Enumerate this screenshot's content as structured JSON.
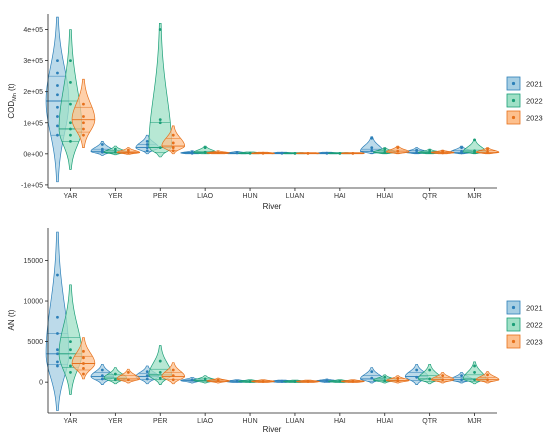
{
  "colors": {
    "2021": "#2c7fb8",
    "2022": "#1a9e77",
    "2023": "#e6701b",
    "fill_2021": "#a6cee3",
    "fill_2022": "#9fe0c6",
    "fill_2023": "#fdc08e"
  },
  "chart_data": [
    {
      "type": "violin",
      "xlabel": "River",
      "ylabel_main": "COD",
      "ylabel_sub": "Mn",
      "ylabel_unit": " (t)",
      "ylim": [
        -110000,
        450000
      ],
      "yticks": [
        -100000,
        0,
        100000,
        200000,
        300000,
        400000
      ],
      "ytick_labels": [
        "-1e+05",
        "0e+00",
        "1e+05",
        "2e+05",
        "3e+05",
        "4e+05"
      ],
      "categories": [
        "YAR",
        "YER",
        "PER",
        "LIAO",
        "HUN",
        "LUAN",
        "HAI",
        "HUAI",
        "QTR",
        "MJR"
      ],
      "legend": [
        "2021",
        "2022",
        "2023"
      ],
      "legend_position": "right",
      "series": [
        {
          "name": "2021",
          "violins": [
            {
              "min": -90000,
              "max": 440000,
              "q1": 60000,
              "median": 170000,
              "q3": 250000,
              "mode": 170000,
              "points": [
                300000,
                260000,
                220000,
                190000,
                150000,
                120000,
                90000,
                60000
              ]
            },
            {
              "min": -5000,
              "max": 40000,
              "q1": 3000,
              "median": 8000,
              "q3": 15000,
              "mode": 8000,
              "points": [
                30000,
                15000,
                10000,
                5000
              ]
            },
            {
              "min": 0,
              "max": 60000,
              "q1": 8000,
              "median": 20000,
              "q3": 30000,
              "mode": 20000,
              "points": [
                40000,
                30000,
                20000,
                10000
              ]
            },
            {
              "min": 0,
              "max": 10000,
              "q1": 1000,
              "median": 3000,
              "q3": 5000,
              "mode": 3000,
              "points": [
                5000,
                2000
              ]
            },
            {
              "min": 0,
              "max": 8000,
              "q1": 1000,
              "median": 2000,
              "q3": 4000,
              "mode": 2000,
              "points": [
                3000
              ]
            },
            {
              "min": 0,
              "max": 5000,
              "q1": 500,
              "median": 1500,
              "q3": 3000,
              "mode": 1500,
              "points": [
                2000
              ]
            },
            {
              "min": 0,
              "max": 5000,
              "q1": 500,
              "median": 1500,
              "q3": 3000,
              "mode": 1500,
              "points": [
                2000
              ]
            },
            {
              "min": 0,
              "max": 55000,
              "q1": 2000,
              "median": 8000,
              "q3": 15000,
              "mode": 8000,
              "points": [
                50000,
                20000,
                10000
              ]
            },
            {
              "min": 0,
              "max": 20000,
              "q1": 2000,
              "median": 5000,
              "q3": 10000,
              "mode": 5000,
              "points": [
                12000,
                5000
              ]
            },
            {
              "min": 0,
              "max": 25000,
              "q1": 2000,
              "median": 5000,
              "q3": 10000,
              "mode": 5000,
              "points": [
                20000,
                8000,
                3000
              ]
            }
          ]
        },
        {
          "name": "2022",
          "violins": [
            {
              "min": -50000,
              "max": 400000,
              "q1": 40000,
              "median": 80000,
              "q3": 170000,
              "mode": 80000,
              "points": [
                300000,
                230000,
                160000,
                100000,
                80000,
                60000,
                40000
              ]
            },
            {
              "min": -3000,
              "max": 25000,
              "q1": 2000,
              "median": 5000,
              "q3": 10000,
              "mode": 5000,
              "points": [
                15000,
                5000
              ]
            },
            {
              "min": -10000,
              "max": 420000,
              "q1": 5000,
              "median": 20000,
              "q3": 100000,
              "mode": 20000,
              "points": [
                400000,
                110000,
                100000,
                20000
              ]
            },
            {
              "min": 0,
              "max": 25000,
              "q1": 1000,
              "median": 4000,
              "q3": 8000,
              "mode": 4000,
              "points": [
                20000,
                5000
              ]
            },
            {
              "min": 0,
              "max": 6000,
              "q1": 1000,
              "median": 2000,
              "q3": 3000,
              "mode": 2000,
              "points": [
                2000
              ]
            },
            {
              "min": 0,
              "max": 4000,
              "q1": 500,
              "median": 1500,
              "q3": 2500,
              "mode": 1500,
              "points": [
                1500
              ]
            },
            {
              "min": 0,
              "max": 4000,
              "q1": 500,
              "median": 1500,
              "q3": 2500,
              "mode": 1500,
              "points": [
                1500
              ]
            },
            {
              "min": 0,
              "max": 20000,
              "q1": 2000,
              "median": 5000,
              "q3": 10000,
              "mode": 5000,
              "points": [
                15000,
                5000
              ]
            },
            {
              "min": 0,
              "max": 15000,
              "q1": 2000,
              "median": 4000,
              "q3": 8000,
              "mode": 4000,
              "points": [
                10000,
                4000
              ]
            },
            {
              "min": 0,
              "max": 45000,
              "q1": 2000,
              "median": 6000,
              "q3": 12000,
              "mode": 6000,
              "points": [
                45000,
                10000,
                4000
              ]
            }
          ]
        },
        {
          "name": "2023",
          "violins": [
            {
              "min": 20000,
              "max": 240000,
              "q1": 70000,
              "median": 110000,
              "q3": 150000,
              "mode": 110000,
              "points": [
                160000,
                120000,
                100000,
                80000,
                60000
              ]
            },
            {
              "min": -2000,
              "max": 20000,
              "q1": 2000,
              "median": 4000,
              "q3": 8000,
              "mode": 4000,
              "points": [
                12000,
                4000
              ]
            },
            {
              "min": 0,
              "max": 90000,
              "q1": 10000,
              "median": 25000,
              "q3": 50000,
              "mode": 25000,
              "points": [
                60000,
                35000,
                20000,
                10000
              ]
            },
            {
              "min": 0,
              "max": 10000,
              "q1": 1000,
              "median": 3000,
              "q3": 5000,
              "mode": 3000,
              "points": [
                4000
              ]
            },
            {
              "min": 0,
              "max": 5000,
              "q1": 500,
              "median": 1500,
              "q3": 3000,
              "mode": 1500,
              "points": [
                2000
              ]
            },
            {
              "min": 0,
              "max": 4000,
              "q1": 500,
              "median": 1500,
              "q3": 2500,
              "mode": 1500,
              "points": [
                1500
              ]
            },
            {
              "min": 0,
              "max": 4000,
              "q1": 500,
              "median": 1500,
              "q3": 2500,
              "mode": 1500,
              "points": [
                1500
              ]
            },
            {
              "min": 0,
              "max": 25000,
              "q1": 2000,
              "median": 6000,
              "q3": 12000,
              "mode": 6000,
              "points": [
                20000,
                8000
              ]
            },
            {
              "min": 0,
              "max": 12000,
              "q1": 1500,
              "median": 4000,
              "q3": 7000,
              "mode": 4000,
              "points": [
                8000,
                3000
              ]
            },
            {
              "min": 0,
              "max": 20000,
              "q1": 2000,
              "median": 5000,
              "q3": 10000,
              "mode": 5000,
              "points": [
                15000,
                6000
              ]
            }
          ]
        }
      ]
    },
    {
      "type": "violin",
      "xlabel": "River",
      "ylabel_main": "AN",
      "ylabel_sub": "",
      "ylabel_unit": " (t)",
      "ylim": [
        -3800,
        19000
      ],
      "yticks": [
        0,
        5000,
        10000,
        15000
      ],
      "ytick_labels": [
        "0",
        "5000",
        "10000",
        "15000"
      ],
      "categories": [
        "YAR",
        "YER",
        "PER",
        "LIAO",
        "HUN",
        "LUAN",
        "HAI",
        "HUAI",
        "QTR",
        "MJR"
      ],
      "legend": [
        "2021",
        "2022",
        "2023"
      ],
      "legend_position": "right",
      "series": [
        {
          "name": "2021",
          "violins": [
            {
              "min": -3500,
              "max": 18500,
              "q1": 2200,
              "median": 3500,
              "q3": 6000,
              "mode": 3500,
              "points": [
                13200,
                8000,
                6000,
                4000,
                3500,
                2500,
                2000
              ]
            },
            {
              "min": -300,
              "max": 2200,
              "q1": 300,
              "median": 700,
              "q3": 1200,
              "mode": 700,
              "points": [
                1500,
                800,
                400
              ]
            },
            {
              "min": -200,
              "max": 2000,
              "q1": 300,
              "median": 700,
              "q3": 1100,
              "mode": 700,
              "points": [
                1300,
                800,
                400
              ]
            },
            {
              "min": -100,
              "max": 600,
              "q1": 50,
              "median": 200,
              "q3": 350,
              "mode": 200,
              "points": [
                300
              ]
            },
            {
              "min": -50,
              "max": 300,
              "q1": 20,
              "median": 100,
              "q3": 200,
              "mode": 100,
              "points": [
                150
              ]
            },
            {
              "min": -50,
              "max": 250,
              "q1": 20,
              "median": 100,
              "q3": 180,
              "mode": 100,
              "points": [
                120
              ]
            },
            {
              "min": -50,
              "max": 400,
              "q1": 50,
              "median": 150,
              "q3": 250,
              "mode": 150,
              "points": [
                200
              ]
            },
            {
              "min": -100,
              "max": 1800,
              "q1": 100,
              "median": 400,
              "q3": 800,
              "mode": 400,
              "points": [
                1300,
                500
              ]
            },
            {
              "min": -300,
              "max": 2200,
              "q1": 200,
              "median": 700,
              "q3": 1200,
              "mode": 700,
              "points": [
                1500,
                600
              ]
            },
            {
              "min": -100,
              "max": 1200,
              "q1": 100,
              "median": 300,
              "q3": 600,
              "mode": 300,
              "points": [
                800,
                300
              ]
            }
          ]
        },
        {
          "name": "2022",
          "violins": [
            {
              "min": -1500,
              "max": 12000,
              "q1": 1800,
              "median": 3500,
              "q3": 5500,
              "mode": 3500,
              "points": [
                5000,
                4000,
                3000,
                2000,
                1200
              ]
            },
            {
              "min": -200,
              "max": 1800,
              "q1": 200,
              "median": 500,
              "q3": 900,
              "mode": 500,
              "points": [
                1000,
                300
              ]
            },
            {
              "min": -300,
              "max": 4500,
              "q1": 300,
              "median": 900,
              "q3": 1600,
              "mode": 900,
              "points": [
                2600,
                1200,
                500
              ]
            },
            {
              "min": -100,
              "max": 800,
              "q1": 50,
              "median": 200,
              "q3": 400,
              "mode": 200,
              "points": [
                400
              ]
            },
            {
              "min": -50,
              "max": 300,
              "q1": 20,
              "median": 100,
              "q3": 200,
              "mode": 100,
              "points": [
                100
              ]
            },
            {
              "min": -50,
              "max": 250,
              "q1": 20,
              "median": 80,
              "q3": 150,
              "mode": 80,
              "points": [
                100
              ]
            },
            {
              "min": -50,
              "max": 300,
              "q1": 20,
              "median": 100,
              "q3": 200,
              "mode": 100,
              "points": [
                150
              ]
            },
            {
              "min": -100,
              "max": 900,
              "q1": 50,
              "median": 250,
              "q3": 500,
              "mode": 250,
              "points": [
                600,
                200
              ]
            },
            {
              "min": -200,
              "max": 2200,
              "q1": 100,
              "median": 400,
              "q3": 800,
              "mode": 400,
              "points": [
                1500,
                400
              ]
            },
            {
              "min": -200,
              "max": 2500,
              "q1": 100,
              "median": 400,
              "q3": 900,
              "mode": 400,
              "points": [
                2000,
                1200,
                300
              ]
            }
          ]
        },
        {
          "name": "2023",
          "violins": [
            {
              "min": 400,
              "max": 5500,
              "q1": 1500,
              "median": 2300,
              "q3": 3200,
              "mode": 2300,
              "points": [
                3800,
                3000,
                2300,
                1700,
                1000
              ]
            },
            {
              "min": -100,
              "max": 1600,
              "q1": 200,
              "median": 400,
              "q3": 800,
              "mode": 400,
              "points": [
                1200,
                300
              ]
            },
            {
              "min": -200,
              "max": 2400,
              "q1": 300,
              "median": 700,
              "q3": 1200,
              "mode": 700,
              "points": [
                1500,
                800,
                300
              ]
            },
            {
              "min": -100,
              "max": 500,
              "q1": 50,
              "median": 150,
              "q3": 300,
              "mode": 150,
              "points": [
                250
              ]
            },
            {
              "min": -50,
              "max": 300,
              "q1": 20,
              "median": 100,
              "q3": 200,
              "mode": 100,
              "points": [
                100
              ]
            },
            {
              "min": -50,
              "max": 250,
              "q1": 20,
              "median": 80,
              "q3": 150,
              "mode": 80,
              "points": [
                100
              ]
            },
            {
              "min": -50,
              "max": 300,
              "q1": 20,
              "median": 100,
              "q3": 200,
              "mode": 100,
              "points": [
                120
              ]
            },
            {
              "min": -100,
              "max": 800,
              "q1": 50,
              "median": 200,
              "q3": 450,
              "mode": 200,
              "points": [
                500,
                200
              ]
            },
            {
              "min": -100,
              "max": 1200,
              "q1": 100,
              "median": 300,
              "q3": 600,
              "mode": 300,
              "points": [
                800,
                300
              ]
            },
            {
              "min": -100,
              "max": 1300,
              "q1": 100,
              "median": 300,
              "q3": 600,
              "mode": 300,
              "points": [
                900,
                300
              ]
            }
          ]
        }
      ]
    }
  ]
}
